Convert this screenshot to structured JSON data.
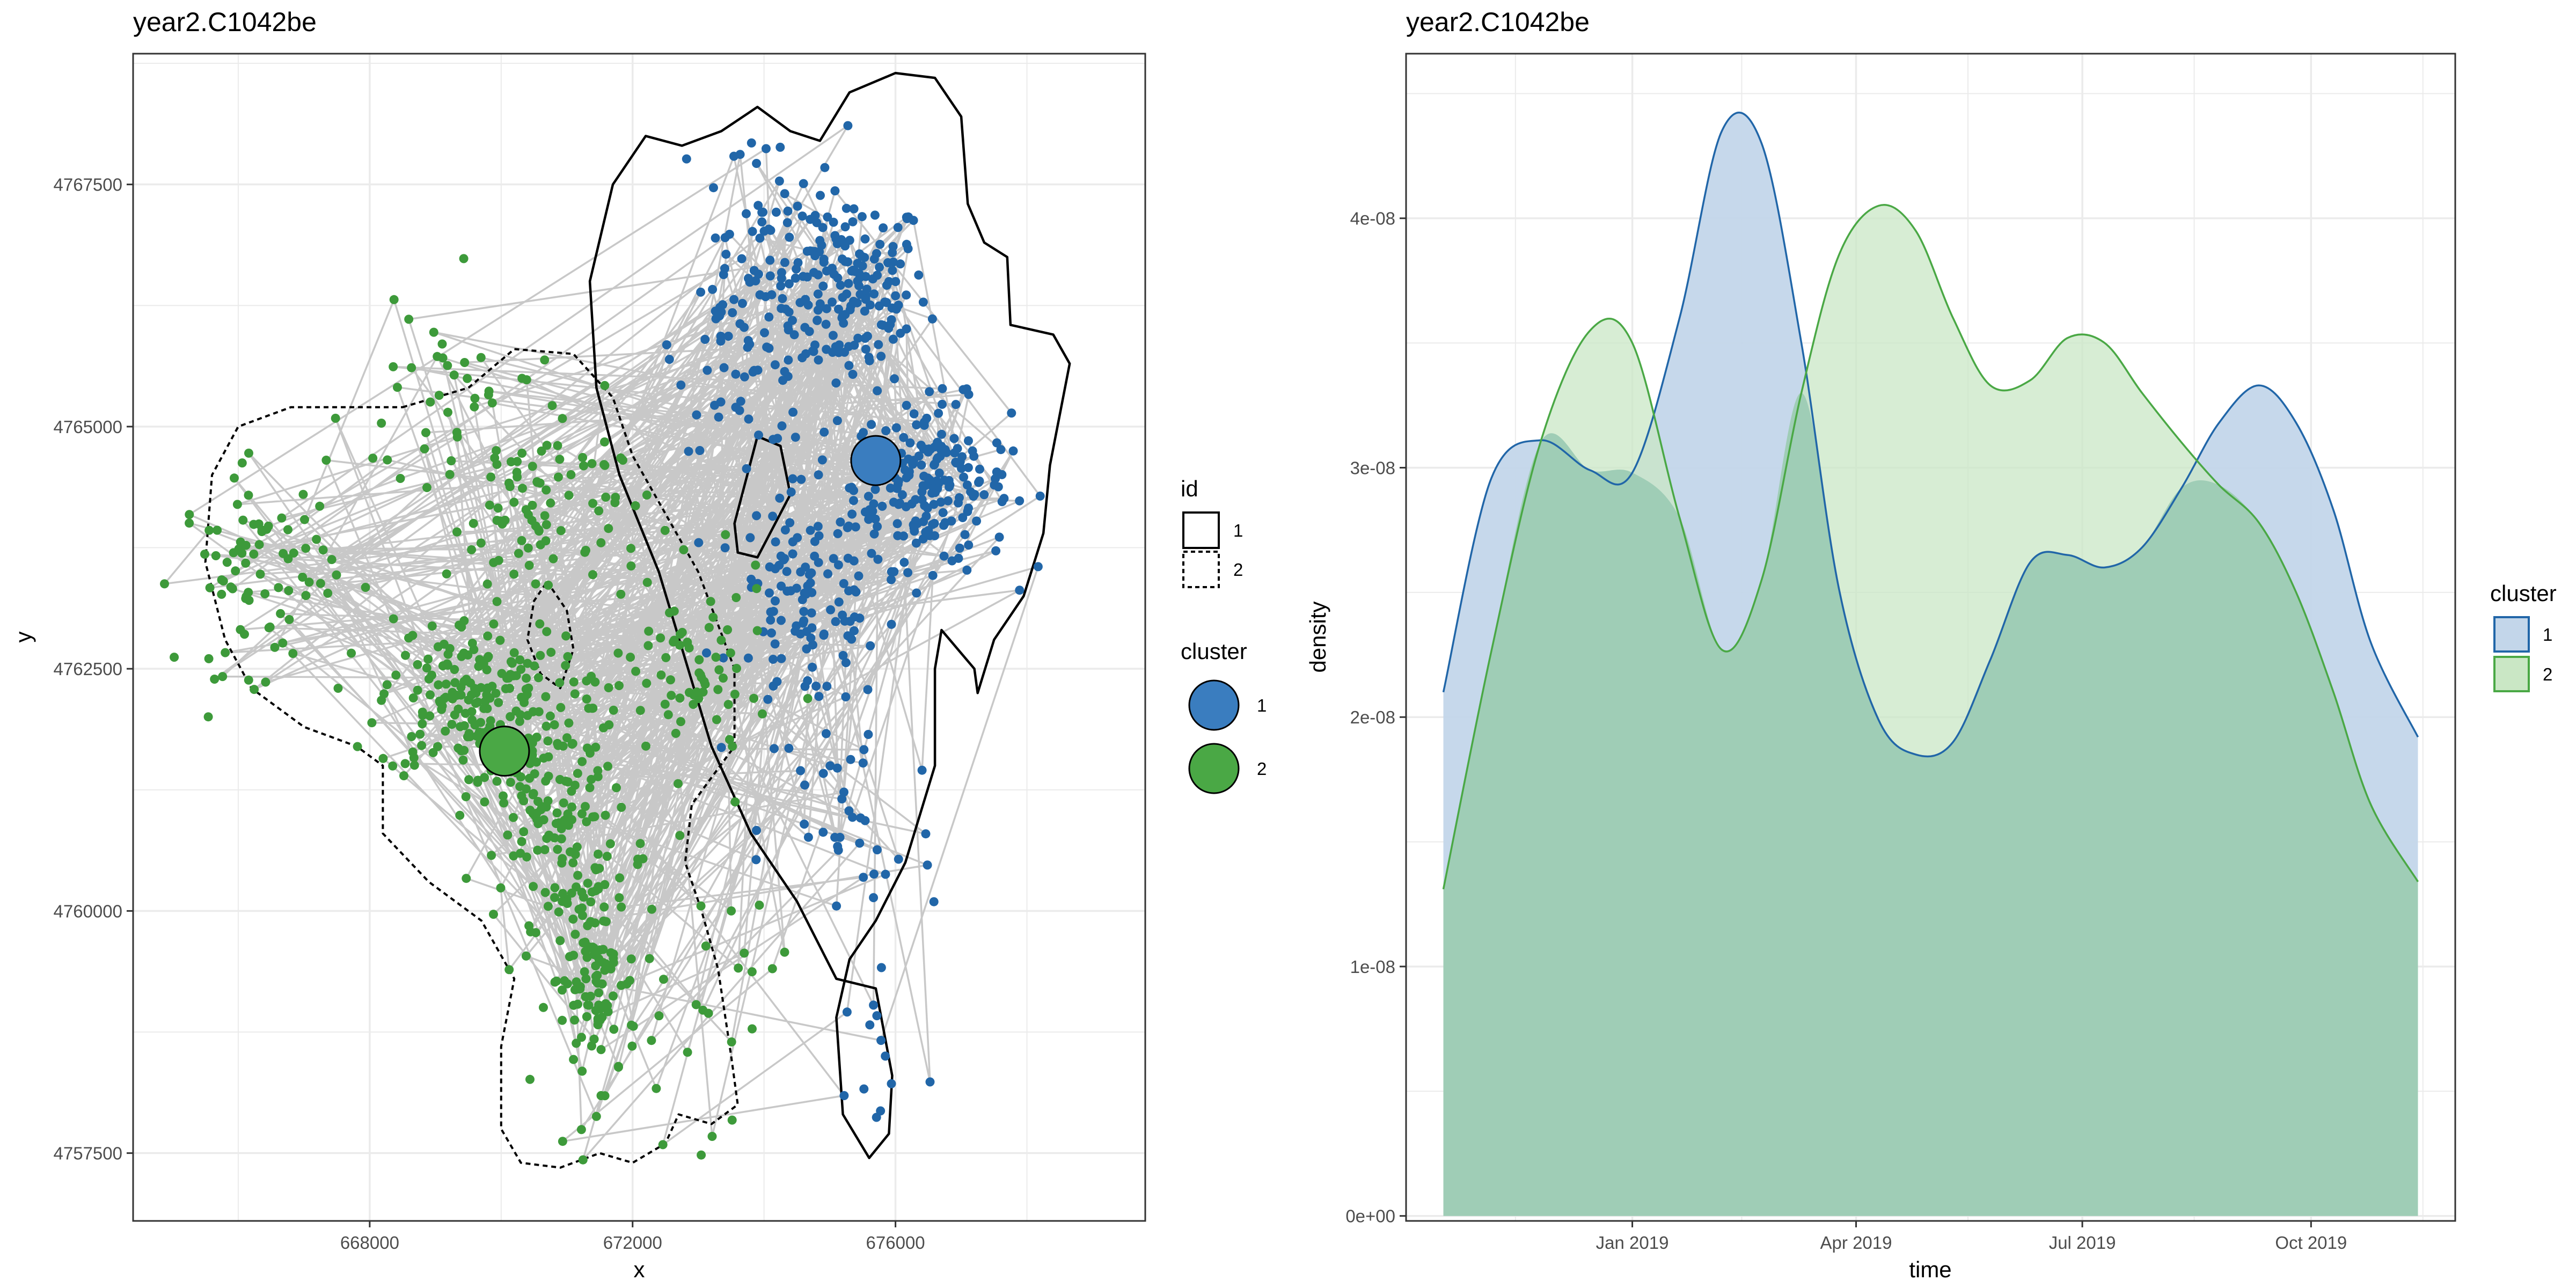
{
  "colors": {
    "cluster1": "#3a7dbf",
    "cluster1_dark": "#2166a8",
    "cluster2": "#4aa845",
    "cluster2_dark": "#3d9a3a",
    "path": "#c8c8c8",
    "grid": "#ebebeb",
    "fill1": "#c3d6ea",
    "fill2": "#cae7c5",
    "overlap": "#9fcdb6"
  },
  "chart_data": [
    {
      "type": "scatter",
      "title": "year2.C1042be",
      "xlabel": "x",
      "ylabel": "y",
      "xlim": [
        664400,
        679800
      ],
      "ylim": [
        4756800,
        4768850
      ],
      "x_ticks": [
        668000,
        672000,
        676000
      ],
      "x_tick_labels": [
        "668000",
        "672000",
        "676000"
      ],
      "y_ticks": [
        4757500,
        4760000,
        4762500,
        4765000,
        4767500
      ],
      "y_tick_labels": [
        "4757500",
        "4760000",
        "4762500",
        "4765000",
        "4767500"
      ],
      "grid": true,
      "legend_position": "right",
      "legends": [
        {
          "title": "id",
          "entries": [
            {
              "label": "1",
              "linetype": "solid"
            },
            {
              "label": "2",
              "linetype": "dashed"
            }
          ]
        },
        {
          "title": "cluster",
          "entries": [
            {
              "label": "1",
              "color": "#3a7dbf"
            },
            {
              "label": "2",
              "color": "#4aa845"
            }
          ]
        }
      ],
      "centroids": [
        {
          "cluster": "1",
          "x": 675700,
          "y": 4764650
        },
        {
          "cluster": "2",
          "x": 670050,
          "y": 4761650
        }
      ],
      "point_clusters": [
        {
          "cluster": "1",
          "cx": 675300,
          "cy": 4766400,
          "sx": 700,
          "sy": 600,
          "n": 170
        },
        {
          "cluster": "1",
          "cx": 676550,
          "cy": 4764400,
          "sx": 700,
          "sy": 500,
          "n": 190
        },
        {
          "cluster": "1",
          "cx": 674700,
          "cy": 4763200,
          "sx": 700,
          "sy": 700,
          "n": 120
        },
        {
          "cluster": "1",
          "cx": 673700,
          "cy": 4765800,
          "sx": 600,
          "sy": 600,
          "n": 60
        },
        {
          "cluster": "1",
          "cx": 673900,
          "cy": 4766900,
          "sx": 800,
          "sy": 700,
          "n": 50
        },
        {
          "cluster": "1",
          "cx": 675300,
          "cy": 4760800,
          "sx": 800,
          "sy": 900,
          "n": 40
        },
        {
          "cluster": "1",
          "cx": 675800,
          "cy": 4758500,
          "sx": 400,
          "sy": 500,
          "n": 12
        },
        {
          "cluster": "2",
          "cx": 669500,
          "cy": 4762200,
          "sx": 800,
          "sy": 500,
          "n": 180
        },
        {
          "cluster": "2",
          "cx": 670800,
          "cy": 4761100,
          "sx": 700,
          "sy": 700,
          "n": 150
        },
        {
          "cluster": "2",
          "cx": 671400,
          "cy": 4759300,
          "sx": 400,
          "sy": 700,
          "n": 120
        },
        {
          "cluster": "2",
          "cx": 666300,
          "cy": 4763500,
          "sx": 700,
          "sy": 600,
          "n": 80
        },
        {
          "cluster": "2",
          "cx": 670700,
          "cy": 4764100,
          "sx": 900,
          "sy": 600,
          "n": 90
        },
        {
          "cluster": "2",
          "cx": 672900,
          "cy": 4762400,
          "sx": 700,
          "sy": 600,
          "n": 70
        },
        {
          "cluster": "2",
          "cx": 669200,
          "cy": 4765200,
          "sx": 900,
          "sy": 700,
          "n": 40
        },
        {
          "cluster": "2",
          "cx": 673000,
          "cy": 4759000,
          "sx": 700,
          "sy": 800,
          "n": 25
        }
      ],
      "contour_1": [
        [
          673350,
          4768050
        ],
        [
          673900,
          4768300
        ],
        [
          674400,
          4768050
        ],
        [
          674850,
          4767950
        ],
        [
          675300,
          4768450
        ],
        [
          676000,
          4768650
        ],
        [
          676600,
          4768600
        ],
        [
          677000,
          4768200
        ],
        [
          677100,
          4767300
        ],
        [
          677350,
          4766900
        ],
        [
          677700,
          4766750
        ],
        [
          677750,
          4766050
        ],
        [
          678400,
          4765950
        ],
        [
          678650,
          4765650
        ],
        [
          678350,
          4764600
        ],
        [
          678250,
          4763900
        ],
        [
          677950,
          4763250
        ],
        [
          677500,
          4762800
        ],
        [
          677250,
          4762250
        ],
        [
          677200,
          4762500
        ],
        [
          676700,
          4762900
        ],
        [
          676600,
          4762500
        ],
        [
          676600,
          4761500
        ],
        [
          676150,
          4760500
        ],
        [
          675700,
          4759900
        ],
        [
          675300,
          4759500
        ],
        [
          675100,
          4758900
        ],
        [
          675200,
          4757900
        ],
        [
          675600,
          4757450
        ],
        [
          675900,
          4757700
        ],
        [
          675950,
          4758300
        ],
        [
          675700,
          4759200
        ],
        [
          675100,
          4759300
        ],
        [
          674500,
          4760100
        ],
        [
          673800,
          4760800
        ],
        [
          673200,
          4761700
        ],
        [
          672800,
          4762600
        ],
        [
          672400,
          4763500
        ],
        [
          671800,
          4764500
        ],
        [
          671450,
          4765400
        ],
        [
          671350,
          4766500
        ],
        [
          671700,
          4767500
        ],
        [
          672200,
          4768000
        ],
        [
          672750,
          4767900
        ],
        [
          673350,
          4768050
        ]
      ],
      "contour_1_hole": [
        [
          673900,
          4764900
        ],
        [
          674250,
          4764800
        ],
        [
          674400,
          4764300
        ],
        [
          673900,
          4763650
        ],
        [
          673600,
          4763700
        ],
        [
          673550,
          4764000
        ],
        [
          673900,
          4764900
        ]
      ],
      "contour_2": [
        [
          668500,
          4765200
        ],
        [
          669500,
          4765400
        ],
        [
          670200,
          4765800
        ],
        [
          671100,
          4765750
        ],
        [
          671700,
          4765300
        ],
        [
          672000,
          4764700
        ],
        [
          672500,
          4764100
        ],
        [
          673000,
          4763500
        ],
        [
          673550,
          4762500
        ],
        [
          673550,
          4761700
        ],
        [
          672900,
          4761100
        ],
        [
          672800,
          4760500
        ],
        [
          673050,
          4760000
        ],
        [
          673300,
          4759400
        ],
        [
          673500,
          4758500
        ],
        [
          673600,
          4758000
        ],
        [
          673200,
          4757800
        ],
        [
          672700,
          4757900
        ],
        [
          672500,
          4757600
        ],
        [
          672000,
          4757400
        ],
        [
          671500,
          4757500
        ],
        [
          670900,
          4757350
        ],
        [
          670300,
          4757400
        ],
        [
          670000,
          4757750
        ],
        [
          670000,
          4758600
        ],
        [
          670200,
          4759300
        ],
        [
          669700,
          4759900
        ],
        [
          668900,
          4760300
        ],
        [
          668200,
          4760800
        ],
        [
          668200,
          4761500
        ],
        [
          667800,
          4761700
        ],
        [
          667000,
          4761900
        ],
        [
          666200,
          4762300
        ],
        [
          665800,
          4762800
        ],
        [
          665500,
          4763600
        ],
        [
          665600,
          4764500
        ],
        [
          666000,
          4765000
        ],
        [
          666800,
          4765200
        ],
        [
          667600,
          4765200
        ],
        [
          668500,
          4765200
        ]
      ],
      "contour_2_hole": [
        [
          670700,
          4763400
        ],
        [
          671000,
          4763100
        ],
        [
          671100,
          4762700
        ],
        [
          670900,
          4762300
        ],
        [
          670600,
          4762450
        ],
        [
          670400,
          4762800
        ],
        [
          670500,
          4763200
        ],
        [
          670700,
          4763400
        ]
      ]
    },
    {
      "type": "area",
      "title": "year2.C1042be",
      "xlabel": "time",
      "ylabel": "density",
      "x_tick_labels": [
        "Jan 2019",
        "Apr 2019",
        "Jul 2019",
        "Oct 2019"
      ],
      "x_ticks": [
        "2019-01-01",
        "2019-04-01",
        "2019-07-01",
        "2019-10-01"
      ],
      "x_minor_ticks": [
        "2018-11-15",
        "2019-02-14",
        "2019-05-16",
        "2019-08-15",
        "2019-11-15"
      ],
      "xlim": [
        "2018-10-02",
        "2019-11-28"
      ],
      "y_ticks": [
        0,
        1e-08,
        2e-08,
        3e-08,
        4e-08
      ],
      "y_tick_labels": [
        "0e+00",
        "1e-08",
        "2e-08",
        "3e-08",
        "4e-08"
      ],
      "ylim": [
        -2e-10,
        4.66e-08
      ],
      "grid": true,
      "legend_position": "right",
      "legend_title": "cluster",
      "series": [
        {
          "name": "1",
          "x": [
            "2018-10-17",
            "2018-11-05",
            "2018-11-25",
            "2018-12-15",
            "2019-01-01",
            "2019-01-20",
            "2019-02-06",
            "2019-02-22",
            "2019-03-10",
            "2019-03-25",
            "2019-04-10",
            "2019-04-25",
            "2019-05-10",
            "2019-05-25",
            "2019-06-10",
            "2019-06-25",
            "2019-07-10",
            "2019-07-25",
            "2019-08-10",
            "2019-08-25",
            "2019-09-10",
            "2019-09-25",
            "2019-10-10",
            "2019-10-25",
            "2019-11-13"
          ],
          "values": [
            2.1e-08,
            2.95e-08,
            3.11e-08,
            2.99e-08,
            2.98e-08,
            3.6e-08,
            4.35e-08,
            4.3e-08,
            3.5e-08,
            2.52e-08,
            1.99e-08,
            1.85e-08,
            1.9e-08,
            2.23e-08,
            2.62e-08,
            2.65e-08,
            2.6e-08,
            2.68e-08,
            2.92e-08,
            3.18e-08,
            3.33e-08,
            3.18e-08,
            2.83e-08,
            2.3e-08,
            1.92e-08
          ]
        },
        {
          "name": "2",
          "x": [
            "2018-10-17",
            "2018-11-05",
            "2018-11-25",
            "2018-12-15",
            "2019-01-01",
            "2019-01-20",
            "2019-02-06",
            "2019-02-22",
            "2019-03-10",
            "2019-03-25",
            "2019-04-10",
            "2019-04-25",
            "2019-05-10",
            "2019-05-25",
            "2019-06-10",
            "2019-06-25",
            "2019-07-10",
            "2019-07-25",
            "2019-08-10",
            "2019-08-25",
            "2019-09-10",
            "2019-09-25",
            "2019-10-10",
            "2019-10-25",
            "2019-11-13"
          ],
          "values": [
            1.31e-08,
            2.25e-08,
            3.1e-08,
            3.55e-08,
            3.5e-08,
            2.8e-08,
            2.27e-08,
            2.55e-08,
            3.3e-08,
            3.85e-08,
            4.05e-08,
            3.95e-08,
            3.6e-08,
            3.33e-08,
            3.35e-08,
            3.52e-08,
            3.5e-08,
            3.3e-08,
            3.1e-08,
            2.93e-08,
            2.78e-08,
            2.5e-08,
            2.1e-08,
            1.65e-08,
            1.34e-08
          ]
        }
      ]
    }
  ]
}
